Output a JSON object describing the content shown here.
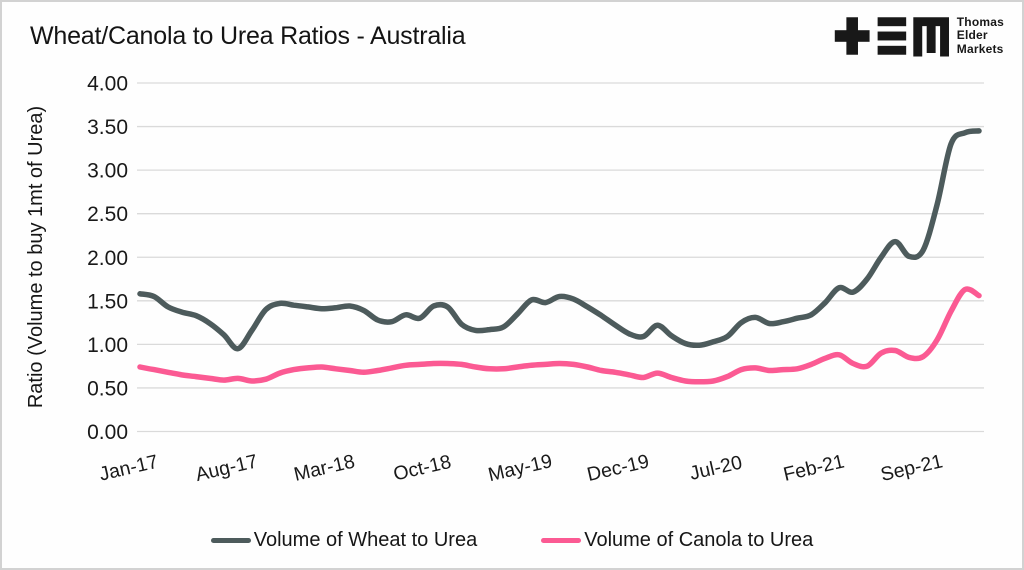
{
  "page": {
    "title": "Wheat/Canola to Urea Ratios - Australia"
  },
  "logo": {
    "name": "Thomas Elder Markets",
    "lines": [
      "Thomas",
      "Elder",
      "Markets"
    ]
  },
  "chart_data": {
    "type": "line",
    "title": "Wheat/Canola to Urea Ratios - Australia",
    "xlabel": "",
    "ylabel": "Ratio (Volume to buy 1mt of Urea)",
    "ylim": [
      0,
      4
    ],
    "ytick_step": 0.5,
    "ytick_labels": [
      "0.00",
      "0.50",
      "1.00",
      "1.50",
      "2.00",
      "2.50",
      "3.00",
      "3.50",
      "4.00"
    ],
    "grid": "horizontal",
    "gridline_color": "#dadada",
    "legend_position": "bottom",
    "x": [
      "Jan-17",
      "Feb-17",
      "Mar-17",
      "Apr-17",
      "May-17",
      "Jun-17",
      "Jul-17",
      "Aug-17",
      "Sep-17",
      "Oct-17",
      "Nov-17",
      "Dec-17",
      "Jan-18",
      "Feb-18",
      "Mar-18",
      "Apr-18",
      "May-18",
      "Jun-18",
      "Jul-18",
      "Aug-18",
      "Sep-18",
      "Oct-18",
      "Nov-18",
      "Dec-18",
      "Jan-19",
      "Feb-19",
      "Mar-19",
      "Apr-19",
      "May-19",
      "Jun-19",
      "Jul-19",
      "Aug-19",
      "Sep-19",
      "Oct-19",
      "Nov-19",
      "Dec-19",
      "Jan-20",
      "Feb-20",
      "Mar-20",
      "Apr-20",
      "May-20",
      "Jun-20",
      "Jul-20",
      "Aug-20",
      "Sep-20",
      "Oct-20",
      "Nov-20",
      "Dec-20",
      "Jan-21",
      "Feb-21",
      "Mar-21",
      "Apr-21",
      "May-21",
      "Jun-21",
      "Jul-21",
      "Aug-21",
      "Sep-21",
      "Oct-21",
      "Nov-21",
      "Dec-21",
      "Jan-22"
    ],
    "xticks": [
      {
        "index": 0,
        "label": "Jan-17"
      },
      {
        "index": 7,
        "label": "Aug-17"
      },
      {
        "index": 14,
        "label": "Mar-18"
      },
      {
        "index": 21,
        "label": "Oct-18"
      },
      {
        "index": 28,
        "label": "May-19"
      },
      {
        "index": 35,
        "label": "Dec-19"
      },
      {
        "index": 42,
        "label": "Jul-20"
      },
      {
        "index": 49,
        "label": "Feb-21"
      },
      {
        "index": 56,
        "label": "Sep-21"
      }
    ],
    "series": [
      {
        "name": "Volume of Wheat to Urea",
        "color": "#4d5b5c",
        "values": [
          1.58,
          1.55,
          1.43,
          1.37,
          1.33,
          1.24,
          1.11,
          0.95,
          1.16,
          1.4,
          1.47,
          1.45,
          1.43,
          1.41,
          1.42,
          1.44,
          1.39,
          1.28,
          1.26,
          1.34,
          1.3,
          1.44,
          1.43,
          1.23,
          1.16,
          1.17,
          1.2,
          1.35,
          1.51,
          1.48,
          1.55,
          1.52,
          1.43,
          1.33,
          1.22,
          1.12,
          1.09,
          1.22,
          1.1,
          1.01,
          0.99,
          1.03,
          1.09,
          1.25,
          1.31,
          1.24,
          1.26,
          1.3,
          1.34,
          1.48,
          1.65,
          1.6,
          1.75,
          2.0,
          2.18,
          2.01,
          2.08,
          2.6,
          3.3,
          3.43,
          3.45
        ]
      },
      {
        "name": "Volume of Canola to Urea",
        "color": "#fb5a93",
        "values": [
          0.74,
          0.71,
          0.68,
          0.65,
          0.63,
          0.61,
          0.59,
          0.61,
          0.58,
          0.6,
          0.67,
          0.71,
          0.73,
          0.74,
          0.72,
          0.7,
          0.68,
          0.7,
          0.73,
          0.76,
          0.77,
          0.78,
          0.78,
          0.77,
          0.74,
          0.72,
          0.72,
          0.74,
          0.76,
          0.77,
          0.78,
          0.77,
          0.74,
          0.7,
          0.68,
          0.65,
          0.62,
          0.67,
          0.62,
          0.58,
          0.57,
          0.58,
          0.63,
          0.71,
          0.73,
          0.7,
          0.71,
          0.72,
          0.77,
          0.84,
          0.88,
          0.78,
          0.75,
          0.9,
          0.93,
          0.85,
          0.86,
          1.05,
          1.38,
          1.63,
          1.56
        ]
      }
    ]
  }
}
